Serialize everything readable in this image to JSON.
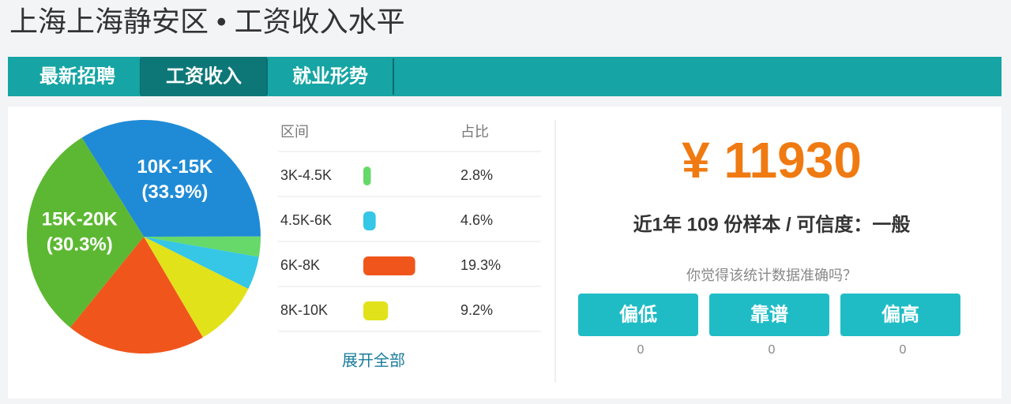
{
  "header": {
    "title": "上海上海静安区 • 工资收入水平"
  },
  "tabs": [
    "最新招聘",
    "工资收入",
    "就业形势"
  ],
  "active_tab": 1,
  "chart_data": {
    "type": "pie",
    "categories": [
      "10K-15K",
      null,
      null,
      null,
      null,
      "15K-20K"
    ],
    "values": [
      33.9,
      2.8,
      4.6,
      9.2,
      19.3,
      30.3
    ],
    "value_labels": [
      "(33.9%)",
      null,
      null,
      null,
      null,
      "(30.3%)"
    ],
    "colors": [
      "#1f8bd6",
      "#66d96a",
      "#36c6e6",
      "#e2e21a",
      "#f0561c",
      "#5cb832"
    ]
  },
  "table": {
    "headers": [
      "区间",
      "占比"
    ],
    "rows": [
      {
        "range": "3K-4.5K",
        "share": 2.8,
        "share_label": "2.8%",
        "color": "#66d96a"
      },
      {
        "range": "4.5K-6K",
        "share": 4.6,
        "share_label": "4.6%",
        "color": "#36c6e6"
      },
      {
        "range": "6K-8K",
        "share": 19.3,
        "share_label": "19.3%",
        "color": "#f0561c"
      },
      {
        "range": "8K-10K",
        "share": 9.2,
        "share_label": "9.2%",
        "color": "#e2e21a"
      }
    ],
    "expand": "展开全部"
  },
  "summary": {
    "amount": "¥ 11930",
    "detail": "近1年 109 份样本 / 可信度：一般",
    "question": "你觉得该统计数据准确吗？"
  },
  "votes": [
    {
      "label": "偏低",
      "count": 0
    },
    {
      "label": "靠谱",
      "count": 0
    },
    {
      "label": "偏高",
      "count": 0
    }
  ]
}
